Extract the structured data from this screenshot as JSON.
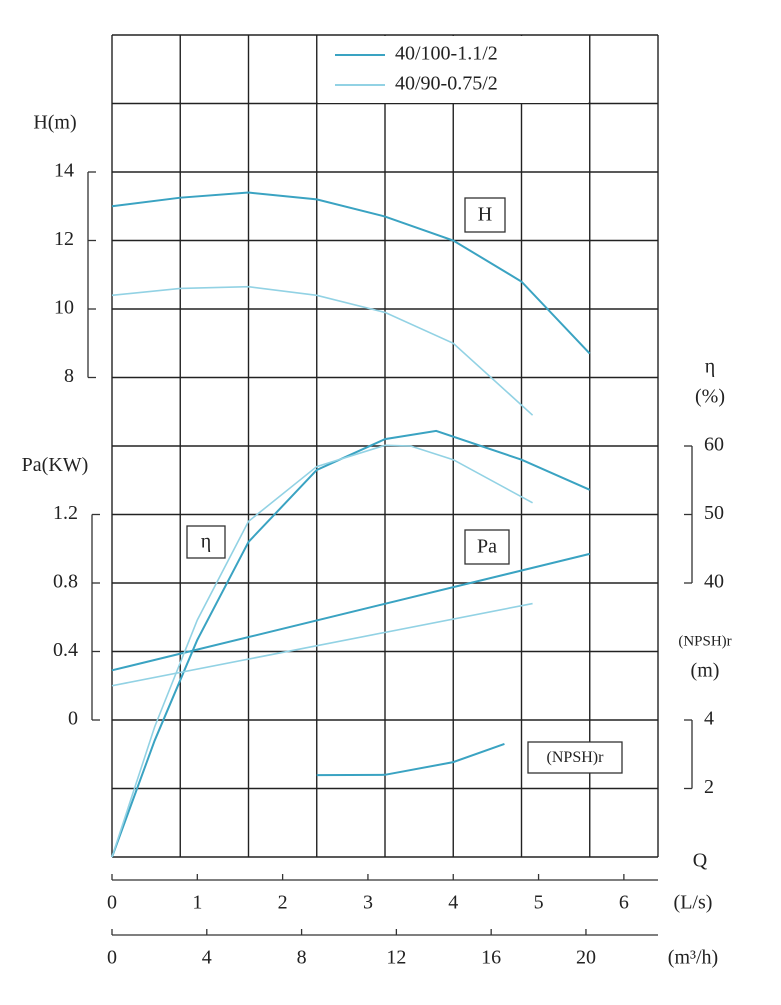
{
  "chart_data": {
    "type": "line",
    "legend": "top-right",
    "x_title": "Q",
    "xaxes": [
      {
        "label": "(L/s)",
        "xlim": [
          0,
          6.4
        ],
        "xticks": [
          0,
          1,
          2,
          3,
          4,
          5,
          6
        ]
      },
      {
        "label": "(m³/h)",
        "xlim": [
          0,
          23.04
        ],
        "xticks": [
          0,
          4,
          8,
          12,
          16,
          20
        ]
      }
    ],
    "axes": {
      "H": {
        "label": [
          "H(m)"
        ],
        "ylim": [
          -6,
          18
        ],
        "yticks": [
          14,
          12,
          10,
          8
        ],
        "box": "H"
      },
      "Pa": {
        "label": [
          "Pa(KW)"
        ],
        "ylim": [
          -0.8,
          4.0
        ],
        "yticks": [
          1.2,
          0.8,
          0.4,
          0
        ],
        "box": "Pa"
      },
      "eta": {
        "label": [
          "η",
          "(%)"
        ],
        "ylim": [
          0,
          120
        ],
        "yticks": [
          60,
          50,
          40
        ],
        "box": "η"
      },
      "npsh": {
        "label": [
          "(NPSH)r",
          "(m)"
        ],
        "ylim": [
          0,
          24
        ],
        "yticks": [
          4,
          2
        ],
        "box": "(NPSH)r"
      }
    },
    "series": [
      {
        "name": "40/100-1.1/2",
        "color": "#3aa3c2",
        "H": {
          "x": [
            0,
            0.8,
            1.6,
            2.4,
            3.2,
            4.0,
            4.8,
            5.6
          ],
          "values": [
            13.0,
            13.25,
            13.4,
            13.2,
            12.7,
            12.0,
            10.8,
            8.7
          ]
        },
        "eta": {
          "x": [
            0,
            0.5,
            1.0,
            1.6,
            2.4,
            3.2,
            3.8,
            4.8,
            5.6
          ],
          "values": [
            0,
            17,
            31.7,
            46,
            56.5,
            61,
            62.2,
            58,
            53.6
          ]
        },
        "Pa": {
          "x": [
            0,
            5.6
          ],
          "values": [
            0.29,
            0.97
          ]
        }
      },
      {
        "name": "40/90-0.75/2",
        "color": "#92d2e4",
        "H": {
          "x": [
            0,
            0.8,
            1.6,
            2.4,
            3.2,
            4.0,
            4.93
          ],
          "values": [
            10.4,
            10.6,
            10.65,
            10.4,
            9.9,
            9.0,
            6.9
          ]
        },
        "eta": {
          "x": [
            0,
            0.5,
            1.0,
            1.6,
            2.4,
            3.2,
            3.5,
            4.0,
            4.93
          ],
          "values": [
            0,
            19,
            34.6,
            49,
            57,
            60.1,
            60,
            58,
            51.7
          ]
        },
        "Pa": {
          "x": [
            0,
            4.93
          ],
          "values": [
            0.2,
            0.68
          ]
        }
      }
    ],
    "npsh_curve": {
      "color": "#3aa3c2",
      "x": [
        2.4,
        3.2,
        4.0,
        4.6
      ],
      "values": [
        2.39,
        2.4,
        2.77,
        3.3
      ]
    }
  }
}
